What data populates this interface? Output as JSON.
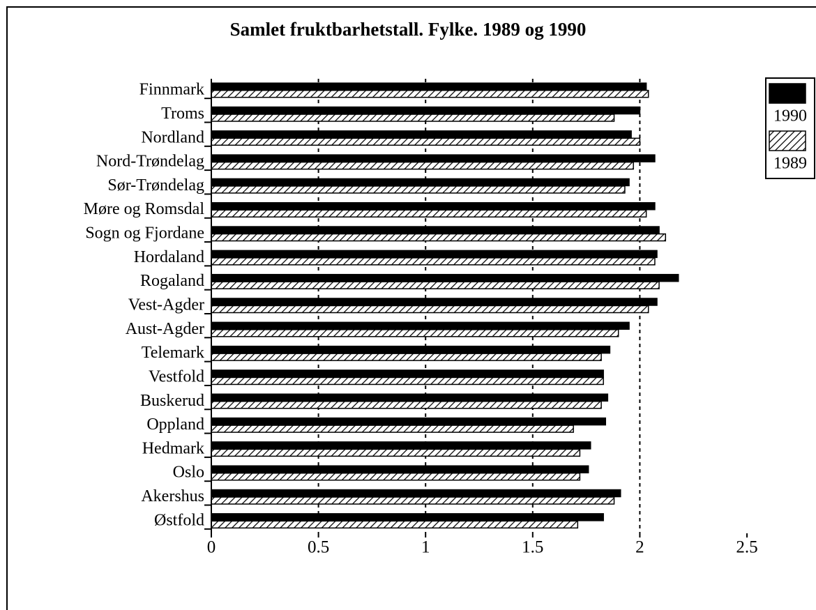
{
  "chart_data": {
    "type": "barh",
    "title": "Samlet fruktbarhetstall. Fylke. 1989 og 1990",
    "categories": [
      "Finnmark",
      "Troms",
      "Nordland",
      "Nord-Trøndelag",
      "Sør-Trøndelag",
      "Møre og Romsdal",
      "Sogn og Fjordane",
      "Hordaland",
      "Rogaland",
      "Vest-Agder",
      "Aust-Agder",
      "Telemark",
      "Vestfold",
      "Buskerud",
      "Oppland",
      "Hedmark",
      "Oslo",
      "Akershus",
      "Østfold"
    ],
    "series": [
      {
        "name": "1990",
        "color": "#000000",
        "fill": "solid",
        "values": [
          2.03,
          2.0,
          1.96,
          2.07,
          1.95,
          2.07,
          2.09,
          2.08,
          2.18,
          2.08,
          1.95,
          1.86,
          1.83,
          1.85,
          1.84,
          1.77,
          1.76,
          1.91,
          1.83
        ]
      },
      {
        "name": "1989",
        "color": "#000000",
        "fill": "hatch",
        "values": [
          2.04,
          1.88,
          2.0,
          1.97,
          1.93,
          2.03,
          2.12,
          2.07,
          2.09,
          2.04,
          1.9,
          1.82,
          1.83,
          1.82,
          1.69,
          1.72,
          1.72,
          1.88,
          1.71
        ]
      }
    ],
    "xlim": [
      0,
      2.5
    ],
    "xticks": [
      0,
      0.5,
      1,
      1.5,
      2,
      2.5
    ],
    "grid": true,
    "legend": "top-right"
  }
}
